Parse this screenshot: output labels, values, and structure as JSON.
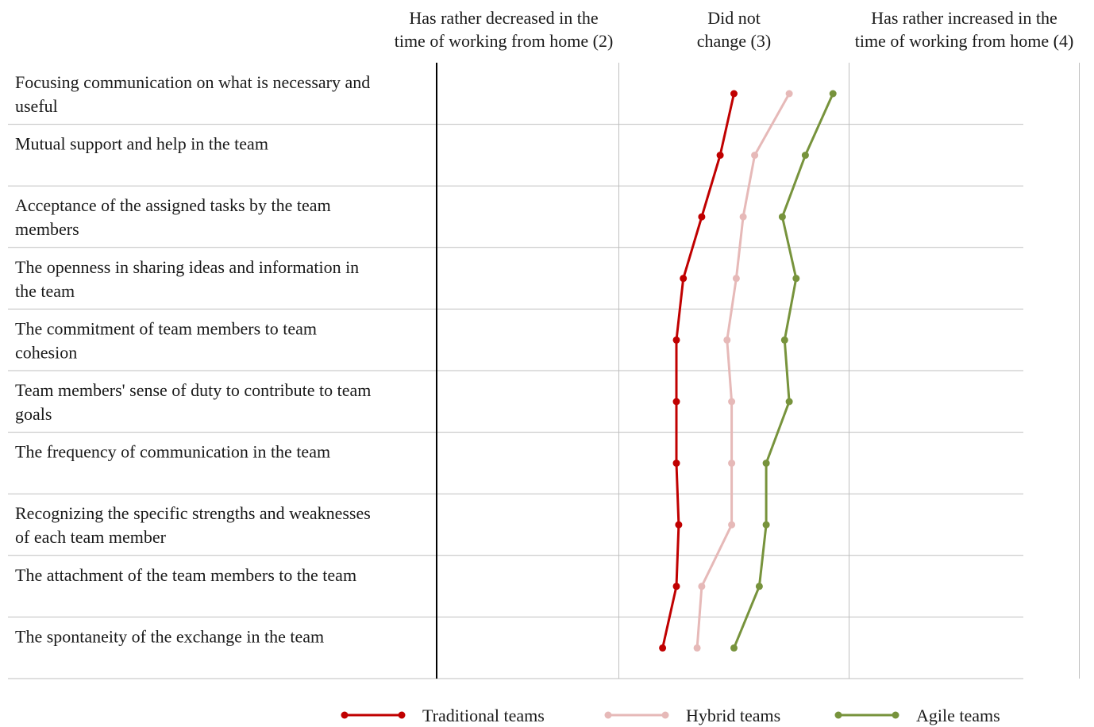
{
  "chart_data": {
    "type": "line",
    "orientation": "horizontal",
    "x_scale_labels": [
      {
        "value": 2,
        "lines": [
          "Has rather decreased in the",
          "time of working from home (2)"
        ]
      },
      {
        "value": 3,
        "lines": [
          "Did not",
          "change (3)"
        ]
      },
      {
        "value": 4,
        "lines": [
          "Has rather increased in the",
          "time of working from home (4)"
        ]
      }
    ],
    "xlim": [
      1.7,
      4.25
    ],
    "grid": true,
    "categories": [
      {
        "lines": [
          "Focusing communication on what is necessary and",
          "useful"
        ]
      },
      {
        "lines": [
          "Mutual support and help in the team"
        ]
      },
      {
        "lines": [
          "Acceptance of the assigned tasks by the team",
          "members"
        ]
      },
      {
        "lines": [
          "The openness in sharing ideas and information in",
          "the team"
        ]
      },
      {
        "lines": [
          "The commitment of team members to team",
          "cohesion"
        ]
      },
      {
        "lines": [
          "Team members' sense of duty to contribute to team",
          "goals"
        ]
      },
      {
        "lines": [
          "The frequency of communication in the team"
        ]
      },
      {
        "lines": [
          "Recognizing the specific strengths and weaknesses",
          "of each team member"
        ]
      },
      {
        "lines": [
          "The attachment of the team members to the team"
        ]
      },
      {
        "lines": [
          "The spontaneity of the exchange in the team"
        ]
      }
    ],
    "series": [
      {
        "name": "Traditional teams",
        "color": "#c00000",
        "values": [
          3.0,
          2.94,
          2.86,
          2.78,
          2.75,
          2.75,
          2.75,
          2.76,
          2.75,
          2.69
        ]
      },
      {
        "name": "Hybrid teams",
        "color": "#e6b9b8",
        "values": [
          3.24,
          3.09,
          3.04,
          3.01,
          2.97,
          2.99,
          2.99,
          2.99,
          2.86,
          2.84
        ]
      },
      {
        "name": "Agile teams",
        "color": "#77933c",
        "values": [
          3.43,
          3.31,
          3.21,
          3.27,
          3.22,
          3.24,
          3.14,
          3.14,
          3.11,
          3.0
        ]
      }
    ],
    "legend_position": "bottom"
  }
}
